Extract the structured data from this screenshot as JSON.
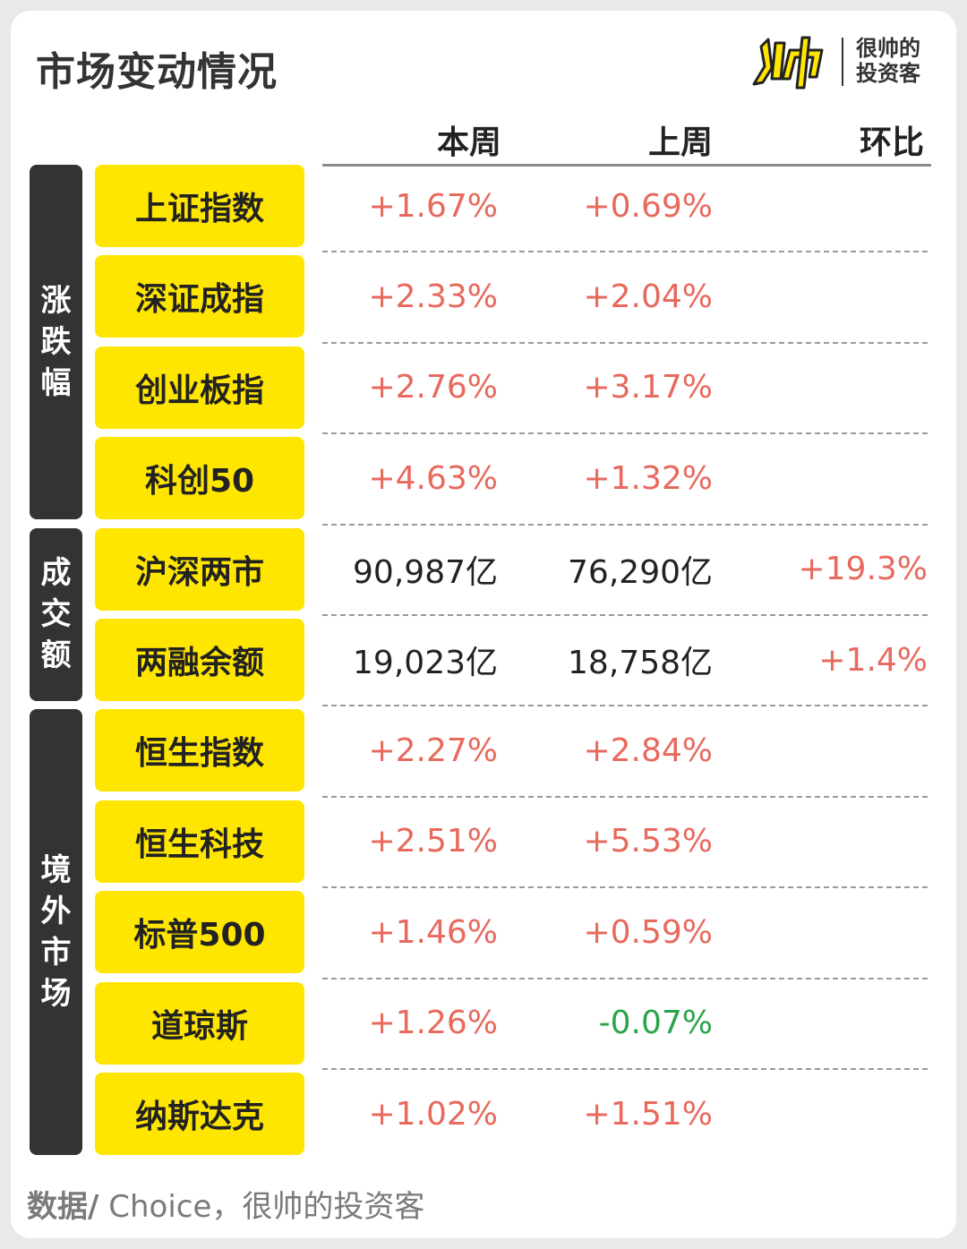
{
  "title": "市场变动情况",
  "logo": {
    "line1": "很帅的",
    "line2": "投资客",
    "mark_colors": [
      "#ffe600",
      "#222222"
    ]
  },
  "columns": {
    "this_week": "本周",
    "last_week": "上周",
    "change": "环比"
  },
  "groups": [
    {
      "label": "涨跌幅",
      "rows": [
        {
          "name": "上证指数",
          "this_week": "+1.67%",
          "last_week": "+0.69%",
          "change": "",
          "tw": "up",
          "lw": "up",
          "ch": "up"
        },
        {
          "name": "深证成指",
          "this_week": "+2.33%",
          "last_week": "+2.04%",
          "change": "",
          "tw": "up",
          "lw": "up",
          "ch": "up"
        },
        {
          "name": "创业板指",
          "this_week": "+2.76%",
          "last_week": "+3.17%",
          "change": "",
          "tw": "up",
          "lw": "up",
          "ch": "up"
        },
        {
          "name": "科创50",
          "this_week": "+4.63%",
          "last_week": "+1.32%",
          "change": "",
          "tw": "up",
          "lw": "up",
          "ch": "up"
        }
      ]
    },
    {
      "label": "成交额",
      "rows": [
        {
          "name": "沪深两市",
          "this_week": "90,987亿",
          "last_week": "76,290亿",
          "change": "+19.3%",
          "tw": "neutral",
          "lw": "neutral",
          "ch": "up"
        },
        {
          "name": "两融余额",
          "this_week": "19,023亿",
          "last_week": "18,758亿",
          "change": "+1.4%",
          "tw": "neutral",
          "lw": "neutral",
          "ch": "up"
        }
      ]
    },
    {
      "label": "境外市场",
      "rows": [
        {
          "name": "恒生指数",
          "this_week": "+2.27%",
          "last_week": "+2.84%",
          "change": "",
          "tw": "up",
          "lw": "up",
          "ch": "up"
        },
        {
          "name": "恒生科技",
          "this_week": "+2.51%",
          "last_week": "+5.53%",
          "change": "",
          "tw": "up",
          "lw": "up",
          "ch": "up"
        },
        {
          "name": "标普500",
          "this_week": "+1.46%",
          "last_week": "+0.59%",
          "change": "",
          "tw": "up",
          "lw": "up",
          "ch": "up"
        },
        {
          "name": "道琼斯",
          "this_week": "+1.26%",
          "last_week": "-0.07%",
          "change": "",
          "tw": "up",
          "lw": "down",
          "ch": "up"
        },
        {
          "name": "纳斯达克",
          "this_week": "+1.02%",
          "last_week": "+1.51%",
          "change": "",
          "tw": "up",
          "lw": "up",
          "ch": "up"
        }
      ]
    }
  ],
  "footer": {
    "prefix": "数据/",
    "source": " Choice，很帅的投资客"
  }
}
